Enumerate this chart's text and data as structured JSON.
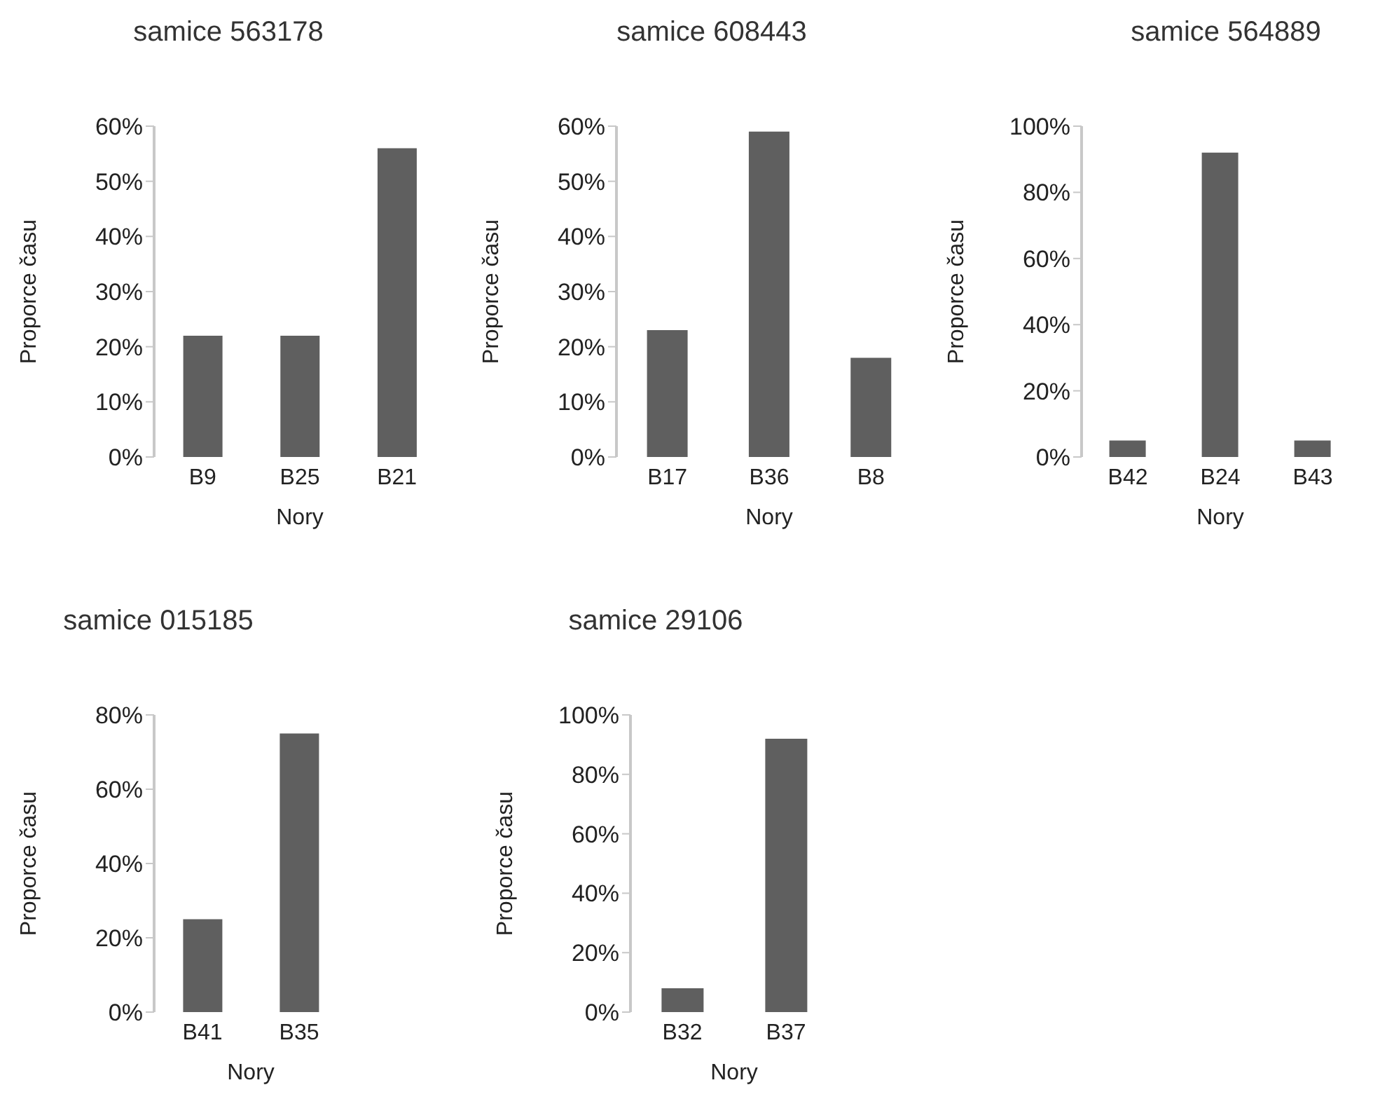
{
  "chart_data": [
    {
      "type": "bar",
      "title": "samice 563178",
      "xlabel": "Nory",
      "ylabel": "Proporce času",
      "categories": [
        "B9",
        "B25",
        "B21"
      ],
      "values": [
        22,
        22,
        56
      ],
      "color": "#5f5f5f",
      "ylim": [
        0,
        60
      ],
      "yticks": [
        {
          "value": 0,
          "label": "0%"
        },
        {
          "value": 10,
          "label": "10%"
        },
        {
          "value": 20,
          "label": "20%"
        },
        {
          "value": 30,
          "label": "30%"
        },
        {
          "value": 40,
          "label": "40%"
        },
        {
          "value": 50,
          "label": "50%"
        },
        {
          "value": 60,
          "label": "60%"
        }
      ],
      "grid": false,
      "legend": false
    },
    {
      "type": "bar",
      "title": "samice 608443",
      "xlabel": "Nory",
      "ylabel": "Proporce času",
      "categories": [
        "B17",
        "B36",
        "B8"
      ],
      "values": [
        23,
        59,
        18
      ],
      "color": "#5f5f5f",
      "ylim": [
        0,
        60
      ],
      "yticks": [
        {
          "value": 0,
          "label": "0%"
        },
        {
          "value": 10,
          "label": "10%"
        },
        {
          "value": 20,
          "label": "20%"
        },
        {
          "value": 30,
          "label": "30%"
        },
        {
          "value": 40,
          "label": "40%"
        },
        {
          "value": 50,
          "label": "50%"
        },
        {
          "value": 60,
          "label": "60%"
        }
      ],
      "grid": false,
      "legend": false
    },
    {
      "type": "bar",
      "title": "samice 564889",
      "xlabel": "Nory",
      "ylabel": "Proporce času",
      "categories": [
        "B42",
        "B24",
        "B43"
      ],
      "values": [
        5,
        92,
        5
      ],
      "color": "#5f5f5f",
      "ylim": [
        0,
        100
      ],
      "yticks": [
        {
          "value": 0,
          "label": "0%"
        },
        {
          "value": 20,
          "label": "20%"
        },
        {
          "value": 40,
          "label": "40%"
        },
        {
          "value": 60,
          "label": "60%"
        },
        {
          "value": 80,
          "label": "80%"
        },
        {
          "value": 100,
          "label": "100%"
        }
      ],
      "grid": false,
      "legend": false
    },
    {
      "type": "bar",
      "title": "samice 015185",
      "xlabel": "Nory",
      "ylabel": "Proporce času",
      "categories": [
        "B41",
        "B35"
      ],
      "values": [
        25,
        75
      ],
      "color": "#5f5f5f",
      "ylim": [
        0,
        80
      ],
      "yticks": [
        {
          "value": 0,
          "label": "0%"
        },
        {
          "value": 20,
          "label": "20%"
        },
        {
          "value": 40,
          "label": "40%"
        },
        {
          "value": 60,
          "label": "60%"
        },
        {
          "value": 80,
          "label": "80%"
        }
      ],
      "grid": false,
      "legend": false
    },
    {
      "type": "bar",
      "title": "samice 29106",
      "xlabel": "Nory",
      "ylabel": "Proporce času",
      "categories": [
        "B32",
        "B37"
      ],
      "values": [
        8,
        92
      ],
      "color": "#5f5f5f",
      "ylim": [
        0,
        100
      ],
      "yticks": [
        {
          "value": 0,
          "label": "0%"
        },
        {
          "value": 20,
          "label": "20%"
        },
        {
          "value": 40,
          "label": "40%"
        },
        {
          "value": 60,
          "label": "60%"
        },
        {
          "value": 80,
          "label": "80%"
        },
        {
          "value": 100,
          "label": "100%"
        }
      ],
      "grid": false,
      "legend": false
    }
  ]
}
